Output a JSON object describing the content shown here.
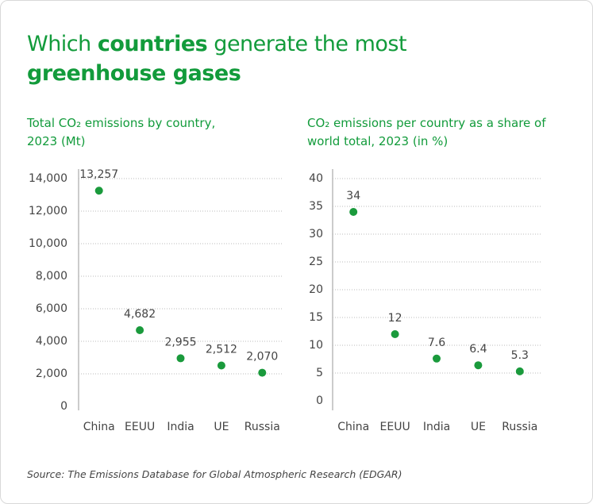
{
  "title_parts": [
    "Which ",
    "countries",
    " generate the most ",
    "greenhouse gases"
  ],
  "title_bold": [
    false,
    true,
    false,
    true
  ],
  "source": "Source: The Emissions Database for Global Atmospheric Research (EDGAR)",
  "chart_data": [
    {
      "type": "scatter",
      "title": "Total CO₂ emissions by country, 2023 (Mt)",
      "categories": [
        "China",
        "EEUU",
        "India",
        "UE",
        "Russia"
      ],
      "values": [
        13257,
        4682,
        2955,
        2512,
        2070
      ],
      "value_labels": [
        "13,257",
        "4,682",
        "2,955",
        "2,512",
        "2,070"
      ],
      "color": "#1a9a3c",
      "ylim": [
        0,
        14000
      ],
      "yticks": [
        0,
        {
          "value": 2000,
          "label": "2,000"
        },
        {
          "value": 4000,
          "label": "4,000"
        },
        {
          "value": 6000,
          "label": "6,000"
        },
        {
          "value": 8000,
          "label": "8,000"
        },
        {
          "value": 10000,
          "label": "10,000"
        },
        {
          "value": 12000,
          "label": "12,000"
        },
        {
          "value": 14000,
          "label": "14,000"
        }
      ],
      "grid": true
    },
    {
      "type": "scatter",
      "title": "CO₂ emissions per country as a share of world total, 2023 (in %)",
      "categories": [
        "China",
        "EEUU",
        "India",
        "UE",
        "Russia"
      ],
      "values": [
        34,
        12,
        7.6,
        6.4,
        5.3
      ],
      "color": "#1a9a3c",
      "ylim": [
        0,
        40
      ],
      "yticks": [
        0,
        5,
        10,
        15,
        20,
        25,
        30,
        35,
        40
      ],
      "grid": true
    }
  ]
}
